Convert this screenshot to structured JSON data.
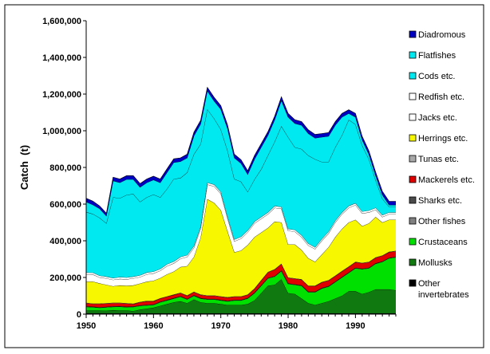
{
  "chart_data": {
    "type": "area",
    "stacked": true,
    "title": "",
    "xlabel": "",
    "ylabel": "Catch  (t)",
    "xlim": [
      1950,
      1996
    ],
    "ylim": [
      0,
      1600000
    ],
    "x_ticks": [
      1950,
      1960,
      1970,
      1980,
      1990
    ],
    "x_tick_labels": [
      "1950",
      "1960",
      "1970",
      "1980",
      "1990"
    ],
    "y_ticks": [
      0,
      200000,
      400000,
      600000,
      800000,
      1000000,
      1200000,
      1400000,
      1600000
    ],
    "y_tick_labels": [
      "0",
      "200,000",
      "400,000",
      "600,000",
      "800,000",
      "1,000,000",
      "1,200,000",
      "1,400,000",
      "1,600,000"
    ],
    "x": [
      1950,
      1951,
      1952,
      1953,
      1954,
      1955,
      1956,
      1957,
      1958,
      1959,
      1960,
      1961,
      1962,
      1963,
      1964,
      1965,
      1966,
      1967,
      1968,
      1969,
      1970,
      1971,
      1972,
      1973,
      1974,
      1975,
      1976,
      1977,
      1978,
      1979,
      1980,
      1981,
      1982,
      1983,
      1984,
      1985,
      1986,
      1987,
      1988,
      1989,
      1990,
      1991,
      1992,
      1993,
      1994,
      1995,
      1996
    ],
    "legend_order": [
      "Diadromous",
      "Flatfishes",
      "Cods etc.",
      "Redfish etc.",
      "Jacks etc.",
      "Herrings etc.",
      "Tunas etc.",
      "Mackerels etc.",
      "Sharks etc.",
      "Other fishes",
      "Crustaceans",
      "Mollusks",
      "Other invertebrates"
    ],
    "series": [
      {
        "name": "Other invertebrates",
        "color": "#000000",
        "values": [
          5000,
          5000,
          5000,
          5000,
          5000,
          5000,
          5000,
          5000,
          5000,
          5000,
          5000,
          5000,
          5000,
          5000,
          5000,
          5000,
          5000,
          5000,
          5000,
          5000,
          5000,
          5000,
          5000,
          5000,
          5000,
          5000,
          5000,
          5000,
          5000,
          5000,
          5000,
          5000,
          5000,
          5000,
          5000,
          5000,
          5000,
          5000,
          5000,
          5000,
          5000,
          5000,
          5000,
          5000,
          5000,
          5000,
          5000
        ]
      },
      {
        "name": "Mollusks",
        "color": "#107a10",
        "values": [
          15000,
          15000,
          15000,
          14000,
          17000,
          16000,
          15000,
          12000,
          20000,
          25000,
          30000,
          40000,
          50000,
          60000,
          65000,
          55000,
          75000,
          60000,
          55000,
          55000,
          50000,
          45000,
          45000,
          45000,
          50000,
          70000,
          110000,
          150000,
          155000,
          185000,
          110000,
          105000,
          80000,
          55000,
          45000,
          55000,
          65000,
          80000,
          95000,
          120000,
          120000,
          105000,
          115000,
          130000,
          130000,
          130000,
          125000
        ]
      },
      {
        "name": "Crustaceans",
        "color": "#00e000",
        "values": [
          20000,
          18000,
          15000,
          18000,
          18000,
          20000,
          18000,
          22000,
          20000,
          18000,
          15000,
          20000,
          20000,
          20000,
          25000,
          20000,
          20000,
          20000,
          20000,
          20000,
          20000,
          20000,
          25000,
          25000,
          30000,
          40000,
          40000,
          40000,
          45000,
          45000,
          50000,
          50000,
          70000,
          60000,
          70000,
          80000,
          80000,
          90000,
          100000,
          100000,
          125000,
          135000,
          130000,
          140000,
          150000,
          170000,
          180000
        ]
      },
      {
        "name": "Other fishes",
        "color": "#808080",
        "values": [
          2000,
          2000,
          2000,
          2000,
          2000,
          2000,
          2000,
          2000,
          2000,
          2000,
          2000,
          2000,
          2000,
          2000,
          2000,
          2000,
          2000,
          2000,
          2000,
          2000,
          2000,
          2000,
          2000,
          2000,
          2000,
          2000,
          2000,
          2000,
          2000,
          2000,
          2000,
          2000,
          2000,
          2000,
          2000,
          2000,
          2000,
          2000,
          2000,
          2000,
          2000,
          2000,
          2000,
          2000,
          2000,
          2000,
          2000
        ]
      },
      {
        "name": "Sharks etc.",
        "color": "#4a4a4a",
        "values": [
          1000,
          1000,
          1000,
          1000,
          1000,
          1000,
          1000,
          1000,
          1000,
          1000,
          1000,
          1000,
          1000,
          1000,
          1000,
          1000,
          1000,
          1000,
          1000,
          1000,
          1000,
          1000,
          1000,
          1000,
          1000,
          1000,
          1000,
          1000,
          1000,
          1000,
          1000,
          1000,
          1000,
          1000,
          1000,
          1000,
          1000,
          1000,
          1000,
          1000,
          1000,
          1000,
          1000,
          1000,
          1000,
          1000,
          1000
        ]
      },
      {
        "name": "Mackerels etc.",
        "color": "#e00000",
        "values": [
          17000,
          15000,
          18000,
          18000,
          17000,
          16000,
          17000,
          13000,
          17000,
          19000,
          17000,
          17000,
          17000,
          17000,
          17000,
          17000,
          17000,
          17000,
          17000,
          17000,
          17000,
          17000,
          17000,
          17000,
          17000,
          20000,
          25000,
          30000,
          35000,
          35000,
          30000,
          30000,
          30000,
          30000,
          30000,
          30000,
          30000,
          30000,
          30000,
          30000,
          30000,
          30000,
          30000,
          30000,
          30000,
          30000,
          30000
        ]
      },
      {
        "name": "Tunas etc.",
        "color": "#a8a8a8",
        "values": [
          2000,
          2000,
          2000,
          2000,
          2000,
          2000,
          2000,
          2000,
          2000,
          2000,
          2000,
          2000,
          2000,
          2000,
          2000,
          2000,
          2000,
          2000,
          2000,
          2000,
          2000,
          2000,
          2000,
          2000,
          2000,
          2000,
          2000,
          2000,
          2000,
          2000,
          2000,
          2000,
          2000,
          2000,
          2000,
          2000,
          2000,
          2000,
          2000,
          2000,
          2000,
          2000,
          2000,
          2000,
          2000,
          2000,
          2000
        ]
      },
      {
        "name": "Herrings etc.",
        "color": "#f7f700",
        "values": [
          115000,
          120000,
          110000,
          100000,
          90000,
          95000,
          95000,
          100000,
          100000,
          105000,
          110000,
          110000,
          120000,
          125000,
          140000,
          160000,
          190000,
          310000,
          525000,
          505000,
          470000,
          360000,
          240000,
          250000,
          270000,
          280000,
          260000,
          240000,
          260000,
          225000,
          180000,
          185000,
          160000,
          150000,
          130000,
          150000,
          180000,
          210000,
          230000,
          240000,
          230000,
          200000,
          210000,
          220000,
          180000,
          175000,
          170000
        ]
      },
      {
        "name": "Jacks etc.",
        "color": "#ffffff",
        "values": [
          40000,
          38000,
          32000,
          35000,
          35000,
          35000,
          35000,
          38000,
          35000,
          40000,
          40000,
          40000,
          45000,
          45000,
          45000,
          50000,
          50000,
          50000,
          80000,
          90000,
          90000,
          70000,
          60000,
          65000,
          70000,
          75000,
          75000,
          75000,
          75000,
          75000,
          75000,
          70000,
          70000,
          70000,
          70000,
          75000,
          75000,
          80000,
          80000,
          80000,
          80000,
          70000,
          60000,
          40000,
          30000,
          30000,
          30000
        ]
      },
      {
        "name": "Redfish etc.",
        "color": "#ffffff",
        "values": [
          10000,
          10000,
          10000,
          10000,
          10000,
          10000,
          10000,
          10000,
          10000,
          10000,
          10000,
          10000,
          10000,
          10000,
          10000,
          10000,
          10000,
          10000,
          10000,
          10000,
          10000,
          10000,
          10000,
          10000,
          10000,
          10000,
          10000,
          10000,
          10000,
          10000,
          10000,
          10000,
          10000,
          10000,
          10000,
          10000,
          10000,
          10000,
          10000,
          10000,
          10000,
          10000,
          10000,
          10000,
          10000,
          10000,
          10000
        ]
      },
      {
        "name": "Cods etc.",
        "color": "#00e8f0",
        "values": [
          330000,
          320000,
          315000,
          290000,
          440000,
          430000,
          450000,
          450000,
          400000,
          410000,
          420000,
          390000,
          410000,
          450000,
          430000,
          450000,
          500000,
          450000,
          400000,
          360000,
          340000,
          360000,
          330000,
          300000,
          210000,
          230000,
          260000,
          310000,
          350000,
          440000,
          500000,
          450000,
          470000,
          480000,
          480000,
          420000,
          380000,
          400000,
          420000,
          470000,
          430000,
          360000,
          280000,
          150000,
          90000,
          30000,
          30000
        ]
      },
      {
        "name": "Flatfishes",
        "color": "#00e8f0",
        "values": [
          55000,
          50000,
          50000,
          40000,
          90000,
          85000,
          85000,
          80000,
          80000,
          80000,
          80000,
          80000,
          90000,
          90000,
          90000,
          80000,
          100000,
          110000,
          100000,
          95000,
          110000,
          120000,
          115000,
          100000,
          95000,
          110000,
          120000,
          110000,
          120000,
          140000,
          110000,
          130000,
          130000,
          120000,
          115000,
          135000,
          140000,
          120000,
          100000,
          35000,
          40000,
          30000,
          25000,
          25000,
          20000,
          10000,
          10000
        ]
      },
      {
        "name": "Diadromous",
        "color": "#0000c0",
        "values": [
          20000,
          20000,
          15000,
          15000,
          20000,
          20000,
          20000,
          20000,
          20000,
          20000,
          20000,
          20000,
          20000,
          20000,
          20000,
          20000,
          20000,
          20000,
          20000,
          20000,
          20000,
          20000,
          20000,
          20000,
          20000,
          20000,
          20000,
          20000,
          20000,
          20000,
          20000,
          20000,
          20000,
          20000,
          20000,
          20000,
          20000,
          20000,
          20000,
          20000,
          20000,
          20000,
          20000,
          20000,
          20000,
          20000,
          20000
        ]
      }
    ]
  }
}
